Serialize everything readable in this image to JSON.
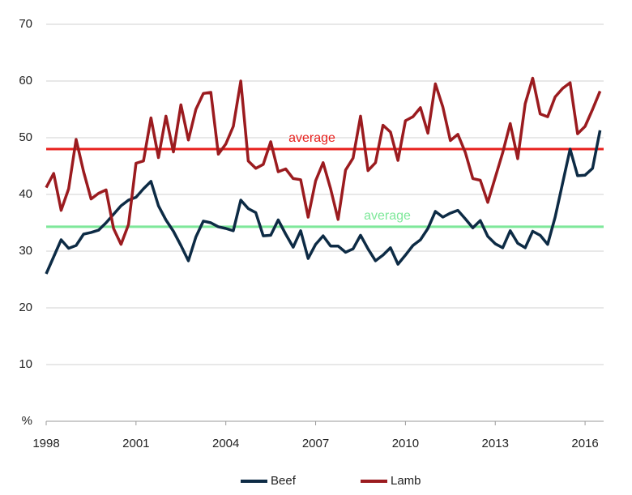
{
  "chart_data": {
    "type": "line",
    "x": [
      1998,
      1998.25,
      1998.5,
      1998.75,
      1999,
      1999.25,
      1999.5,
      1999.75,
      2000,
      2000.25,
      2000.5,
      2000.75,
      2001,
      2001.25,
      2001.5,
      2001.75,
      2002,
      2002.25,
      2002.5,
      2002.75,
      2003,
      2003.25,
      2003.5,
      2003.75,
      2004,
      2004.25,
      2004.5,
      2004.75,
      2005,
      2005.25,
      2005.5,
      2005.75,
      2006,
      2006.25,
      2006.5,
      2006.75,
      2007,
      2007.25,
      2007.5,
      2007.75,
      2008,
      2008.25,
      2008.5,
      2008.75,
      2009,
      2009.25,
      2009.5,
      2009.75,
      2010,
      2010.25,
      2010.5,
      2010.75,
      2011,
      2011.25,
      2011.5,
      2011.75,
      2012,
      2012.25,
      2012.5,
      2012.75,
      2013,
      2013.25,
      2013.5,
      2013.75,
      2014,
      2014.25,
      2014.5,
      2014.75,
      2015,
      2015.25,
      2015.5,
      2015.75,
      2016,
      2016.25,
      2016.5
    ],
    "series": [
      {
        "name": "Beef",
        "color": "#0d2b45",
        "values": [
          26,
          29,
          32,
          30.5,
          31,
          33,
          33.3,
          33.7,
          35,
          36.5,
          38,
          39,
          39.5,
          41,
          42.3,
          38,
          35.5,
          33.5,
          31,
          28.3,
          32.5,
          35.3,
          35,
          34.3,
          34,
          33.6,
          39,
          37.5,
          36.8,
          32.7,
          32.8,
          35.5,
          33,
          30.7,
          33.6,
          28.7,
          31.2,
          32.7,
          30.9,
          30.9,
          29.8,
          30.4,
          32.8,
          30.4,
          28.3,
          29.3,
          30.6,
          27.7,
          29.3,
          31,
          32,
          34,
          37,
          36,
          36.7,
          37.2,
          35.7,
          34.1,
          35.4,
          32.6,
          31.3,
          30.6,
          33.6,
          31.4,
          30.6,
          33.5,
          32.8,
          31.2,
          36,
          42,
          48,
          43.3,
          43.4,
          44.6,
          51.3
        ]
      },
      {
        "name": "Lamb",
        "color": "#9b1b1f",
        "values": [
          41.2,
          43.7,
          37.2,
          41,
          49.7,
          44,
          39.2,
          40.2,
          40.8,
          34,
          31.2,
          34.7,
          45.5,
          45.9,
          53.5,
          46.5,
          53.8,
          47.5,
          55.8,
          49.6,
          55,
          57.8,
          58,
          47.1,
          48.9,
          52,
          60,
          45.9,
          44.6,
          45.3,
          49.3,
          44,
          44.5,
          42.8,
          42.6,
          36,
          42.4,
          45.6,
          41,
          35.6,
          44.3,
          46.4,
          53.8,
          44.2,
          45.6,
          52.2,
          51,
          46,
          53,
          53.7,
          55.3,
          50.8,
          59.5,
          55.4,
          49.5,
          50.6,
          47.4,
          42.8,
          42.5,
          38.6,
          43,
          47.4,
          52.5,
          46.3,
          56,
          60.5,
          54.2,
          53.7,
          57.2,
          58.7,
          59.7,
          50.7,
          52,
          55,
          58.2
        ]
      }
    ],
    "reference_lines": [
      {
        "label": "average",
        "value": 48,
        "color": "#e8211e"
      },
      {
        "label": "average",
        "value": 34.3,
        "color": "#7ee89a"
      }
    ],
    "xlim": [
      1998,
      2016.62
    ],
    "xticks": [
      1998,
      2001,
      2004,
      2007,
      2010,
      2013,
      2016
    ],
    "ylim": [
      0,
      70
    ],
    "yticks": [
      {
        "value": 0,
        "label": "%"
      },
      10,
      20,
      30,
      40,
      50,
      60,
      70
    ],
    "grid": true
  }
}
